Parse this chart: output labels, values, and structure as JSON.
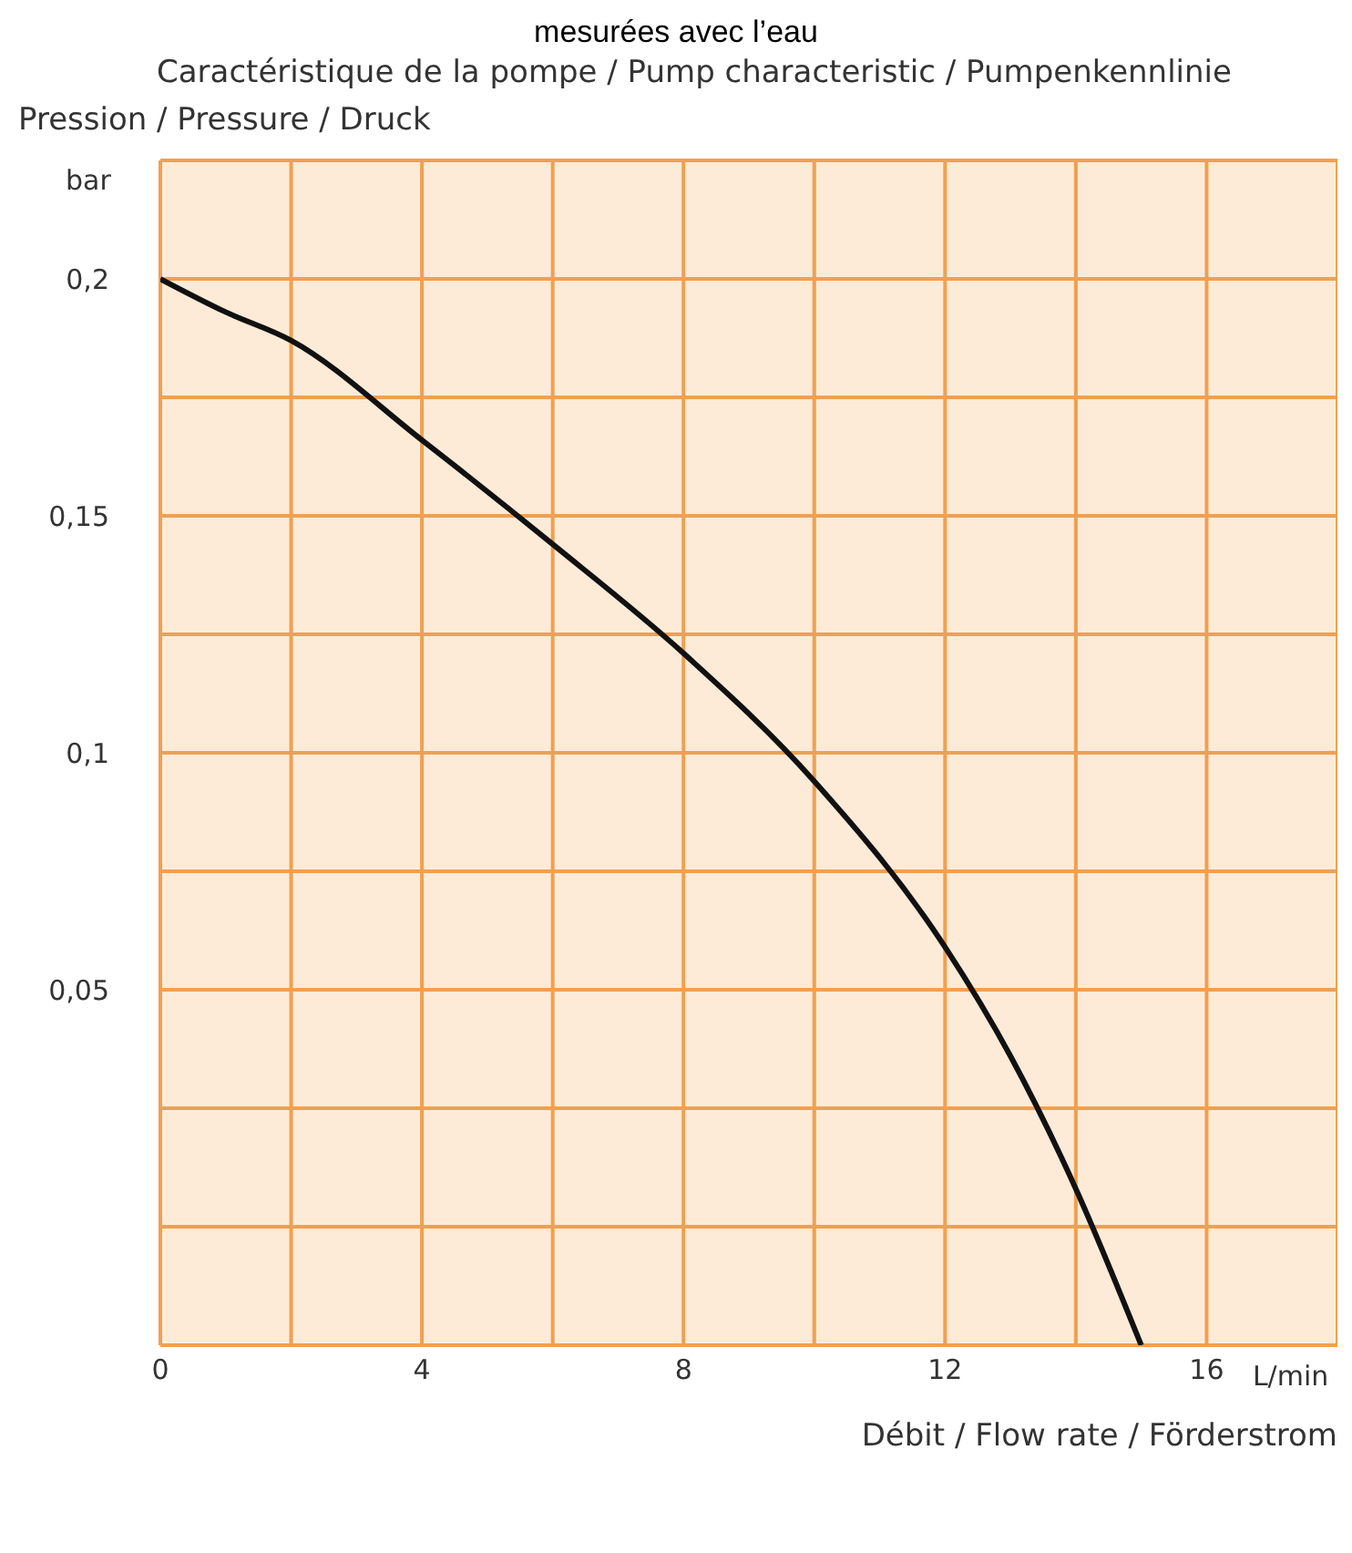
{
  "chart_data": {
    "type": "line",
    "title": "Caractéristique de la pompe / Pump characteristic / Pumpenkennlinie",
    "ylabel": "Pression / Pressure / Druck",
    "xlabel": "Débit / Flow rate / Förderstrom",
    "annotations": [
      "mesurées avec l’eau",
      "bar",
      "L/min"
    ],
    "x": [
      0,
      1,
      2,
      4,
      6,
      8,
      10,
      12,
      13,
      14,
      15
    ],
    "series": [
      {
        "color": "#111111",
        "values": [
          0.2,
          0.193,
          0.187,
          0.166,
          0.144,
          0.121,
          0.094,
          0.059,
          0.036,
          0.008,
          -0.025
        ]
      }
    ],
    "xlim": [
      0,
      18
    ],
    "ylim": [
      -0.025,
      0.225
    ],
    "xticks": [
      0,
      {
        "value": 2,
        "label": null
      },
      4,
      {
        "value": 6,
        "label": null
      },
      8,
      {
        "value": 10,
        "label": null
      },
      12,
      {
        "value": 14,
        "label": null
      },
      16,
      {
        "value": 18,
        "label": null
      }
    ],
    "yticks": [
      {
        "value": -0.025,
        "label": null
      },
      {
        "value": 0,
        "label": null
      },
      {
        "value": 0.025,
        "label": null
      },
      {
        "value": 0.05,
        "label": "0,05"
      },
      {
        "value": 0.075,
        "label": null
      },
      {
        "value": 0.1,
        "label": "0,1"
      },
      {
        "value": 0.125,
        "label": null
      },
      {
        "value": 0.15,
        "label": "0,15"
      },
      {
        "value": 0.175,
        "label": null
      },
      {
        "value": 0.2,
        "label": "0,2"
      },
      {
        "value": 0.225,
        "label": null
      }
    ],
    "grid": true,
    "marker": "none",
    "line_style": "solid",
    "legend": false
  }
}
